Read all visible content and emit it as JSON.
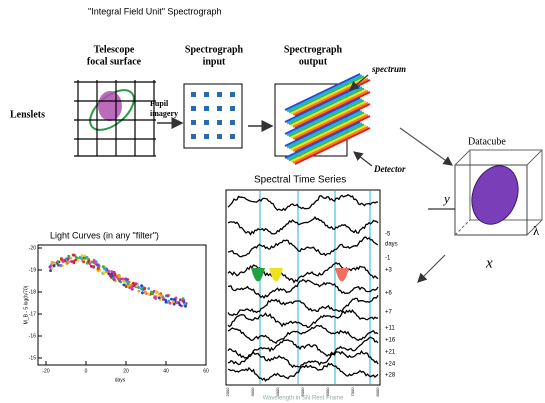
{
  "title": "\"Integral Field Unit\" Spectrograph",
  "pipeline": {
    "lenslets": "Lenslets",
    "telescope": [
      "Telescope",
      "focal surface"
    ],
    "pupil": [
      "Pupil",
      "imagery"
    ],
    "input": [
      "Spectrograph",
      "input"
    ],
    "output": [
      "Spectrograph",
      "output"
    ],
    "spectrum": "spectrum",
    "detector": "Detector"
  },
  "datacube": {
    "label": "Datacube",
    "y": "y",
    "x": "x",
    "lambda": "λ"
  },
  "light_curves": {
    "title": "Light Curves (in any \"filter\")",
    "ylabel": "M_B - 5 log(h/70)",
    "xlabel": "days",
    "yticks": [
      "-20",
      "-19",
      "-18",
      "-17",
      "-16",
      "-15"
    ],
    "xticks": [
      "-20",
      "0",
      "20",
      "40",
      "60"
    ]
  },
  "spectral_series": {
    "title": "Spectral Time Series",
    "xlabel": "Wavelength in SN Rest Frame",
    "xticks": [
      "2000",
      "3000",
      "4000",
      "5000",
      "6000",
      "7000",
      "8000"
    ],
    "epochs": [
      "-5",
      "days",
      "-1",
      "+3",
      "+6",
      "+7",
      "+11",
      "+16",
      "+21",
      "+24",
      "+28"
    ]
  }
}
